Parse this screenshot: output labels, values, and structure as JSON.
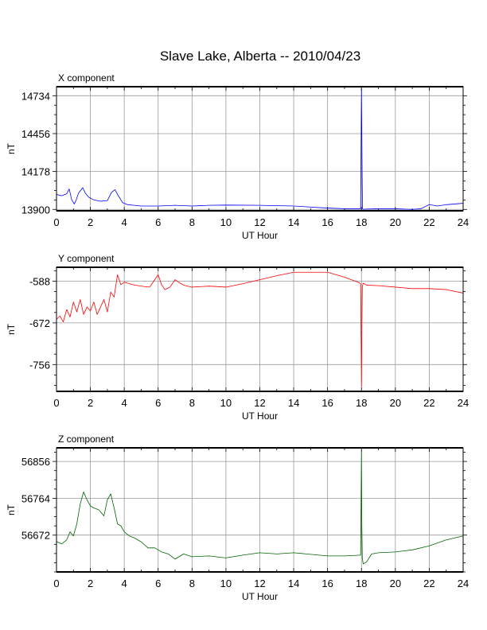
{
  "title": "Slave Lake, Alberta -- 2010/04/23",
  "chart_data": [
    {
      "type": "line",
      "panel_label": "X component",
      "ylabel": "nT",
      "xlabel": "UT Hour",
      "xlim": [
        0,
        24
      ],
      "ylim": [
        13890,
        14800
      ],
      "x_ticks": [
        0,
        2,
        4,
        6,
        8,
        10,
        12,
        14,
        16,
        18,
        20,
        22,
        24
      ],
      "y_ticks": [
        13900,
        14178,
        14456,
        14734
      ],
      "grid": true,
      "series": [
        {
          "color": "#0000ff",
          "x": [
            0,
            0.3,
            0.6,
            0.75,
            0.9,
            1.05,
            1.15,
            1.3,
            1.55,
            1.7,
            1.9,
            2.2,
            2.6,
            3.0,
            3.25,
            3.45,
            3.65,
            3.9,
            4.2,
            4.6,
            5.0,
            6.0,
            7.0,
            8.0,
            9.0,
            10.0,
            12.0,
            14.0,
            16.0,
            17.0,
            17.95,
            18.0,
            18.03,
            18.06,
            18.1,
            18.2,
            19.0,
            20.0,
            21.0,
            21.5,
            22.0,
            22.5,
            23.0,
            24.0
          ],
          "y": [
            14010,
            14000,
            14015,
            14050,
            13970,
            13940,
            13965,
            14020,
            14060,
            14020,
            13990,
            13970,
            13960,
            13965,
            14025,
            14045,
            14000,
            13950,
            13935,
            13930,
            13925,
            13925,
            13930,
            13925,
            13930,
            13932,
            13930,
            13925,
            13910,
            13905,
            13905,
            14790,
            14300,
            13905,
            13900,
            13902,
            13905,
            13905,
            13900,
            13905,
            13935,
            13925,
            13935,
            13945
          ]
        }
      ]
    },
    {
      "type": "line",
      "panel_label": "Y component",
      "ylabel": "nT",
      "xlabel": "UT Hour",
      "xlim": [
        0,
        24
      ],
      "ylim": [
        -810,
        -560
      ],
      "x_ticks": [
        0,
        2,
        4,
        6,
        8,
        10,
        12,
        14,
        16,
        18,
        20,
        22,
        24
      ],
      "y_ticks": [
        -588,
        -672,
        -756
      ],
      "grid": true,
      "series": [
        {
          "color": "#ff0000",
          "x": [
            0,
            0.2,
            0.4,
            0.6,
            0.8,
            1.0,
            1.2,
            1.4,
            1.6,
            1.8,
            2.0,
            2.2,
            2.4,
            2.6,
            2.8,
            3.0,
            3.2,
            3.4,
            3.6,
            3.8,
            4.0,
            4.5,
            5.0,
            5.5,
            5.8,
            6.0,
            6.2,
            6.4,
            6.7,
            7.0,
            7.2,
            7.5,
            8.0,
            9.0,
            10.0,
            11.0,
            12.0,
            13.0,
            14.0,
            15.0,
            16.0,
            17.0,
            17.8,
            17.95,
            18.0,
            18.02,
            18.05,
            18.1,
            18.3,
            19.0,
            20.0,
            21.0,
            22.0,
            23.0,
            24.0
          ],
          "y": [
            -665,
            -658,
            -670,
            -645,
            -660,
            -630,
            -650,
            -625,
            -655,
            -640,
            -648,
            -630,
            -655,
            -640,
            -625,
            -650,
            -610,
            -620,
            -575,
            -595,
            -590,
            -595,
            -598,
            -600,
            -585,
            -575,
            -595,
            -605,
            -600,
            -585,
            -590,
            -596,
            -600,
            -598,
            -600,
            -593,
            -585,
            -577,
            -570,
            -570,
            -570,
            -580,
            -590,
            -593,
            -800,
            -700,
            -600,
            -592,
            -596,
            -597,
            -600,
            -603,
            -603,
            -605,
            -612
          ]
        }
      ]
    },
    {
      "type": "line",
      "panel_label": "Z component",
      "ylabel": "nT",
      "xlabel": "UT Hour",
      "xlim": [
        0,
        24
      ],
      "ylim": [
        56580,
        56890
      ],
      "x_ticks": [
        0,
        2,
        4,
        6,
        8,
        10,
        12,
        14,
        16,
        18,
        20,
        22,
        24
      ],
      "y_ticks": [
        56672,
        56764,
        56856
      ],
      "grid": true,
      "series": [
        {
          "color": "#006400",
          "x": [
            0,
            0.3,
            0.6,
            0.8,
            1.0,
            1.2,
            1.4,
            1.6,
            1.8,
            2.0,
            2.2,
            2.5,
            2.8,
            3.0,
            3.2,
            3.4,
            3.6,
            3.8,
            4.0,
            4.3,
            4.6,
            5.0,
            5.4,
            5.8,
            6.2,
            6.6,
            7.0,
            7.5,
            8.0,
            9.0,
            10.0,
            11.0,
            12.0,
            13.0,
            14.0,
            15.0,
            16.0,
            17.0,
            17.95,
            18.0,
            18.02,
            18.05,
            18.1,
            18.3,
            18.6,
            19.0,
            20.0,
            21.0,
            22.0,
            23.0,
            24.0
          ],
          "y": [
            56656,
            56650,
            56660,
            56680,
            56670,
            56700,
            56750,
            56780,
            56760,
            56745,
            56740,
            56735,
            56720,
            56760,
            56775,
            56740,
            56700,
            56695,
            56680,
            56670,
            56665,
            56655,
            56640,
            56640,
            56630,
            56625,
            56612,
            56625,
            56618,
            56620,
            56615,
            56622,
            56628,
            56625,
            56628,
            56624,
            56620,
            56620,
            56622,
            56880,
            56700,
            56615,
            56600,
            56605,
            56625,
            56628,
            56630,
            56635,
            56645,
            56660,
            56670
          ]
        }
      ]
    }
  ]
}
